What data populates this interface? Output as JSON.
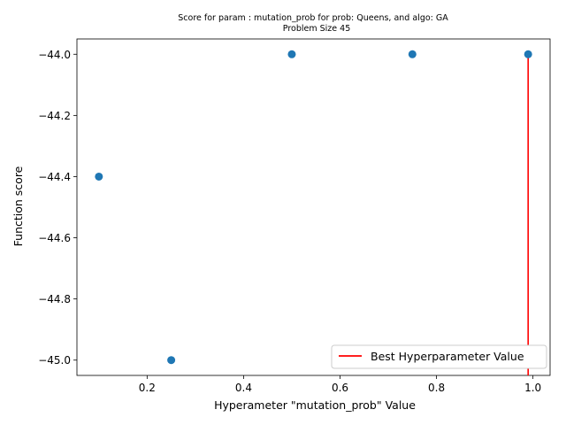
{
  "chart_data": {
    "type": "scatter",
    "title": "Score for param : mutation_prob for prob: Queens, and algo: GA",
    "subtitle": "Problem Size 45",
    "xlabel": "Hyperameter \"mutation_prob\" Value",
    "ylabel": "Function score",
    "xlim": [
      0.0545,
      1.0355
    ],
    "ylim": [
      -45.05,
      -43.95
    ],
    "xticks": [
      0.2,
      0.4,
      0.6,
      0.8,
      1.0
    ],
    "xtick_labels": [
      "0.2",
      "0.4",
      "0.6",
      "0.8",
      "1.0"
    ],
    "yticks": [
      -45.0,
      -44.8,
      -44.6,
      -44.4,
      -44.2,
      -44.0
    ],
    "ytick_labels": [
      "−45.0",
      "−44.8",
      "−44.6",
      "−44.4",
      "−44.2",
      "−44.0"
    ],
    "points": [
      {
        "x": 0.1,
        "y": -44.4
      },
      {
        "x": 0.25,
        "y": -45.0
      },
      {
        "x": 0.5,
        "y": -44.0
      },
      {
        "x": 0.75,
        "y": -44.0
      },
      {
        "x": 0.99,
        "y": -44.0
      }
    ],
    "best_line": {
      "x": 0.99,
      "y_from": -45.05,
      "y_to": -44.0
    },
    "legend": {
      "entries": [
        "Best Hyperparameter Value"
      ],
      "placement": "lower right"
    },
    "grid": false,
    "colors": {
      "points": "#1f77b4",
      "best_line": "#ff0000",
      "axes": "#000000"
    }
  }
}
